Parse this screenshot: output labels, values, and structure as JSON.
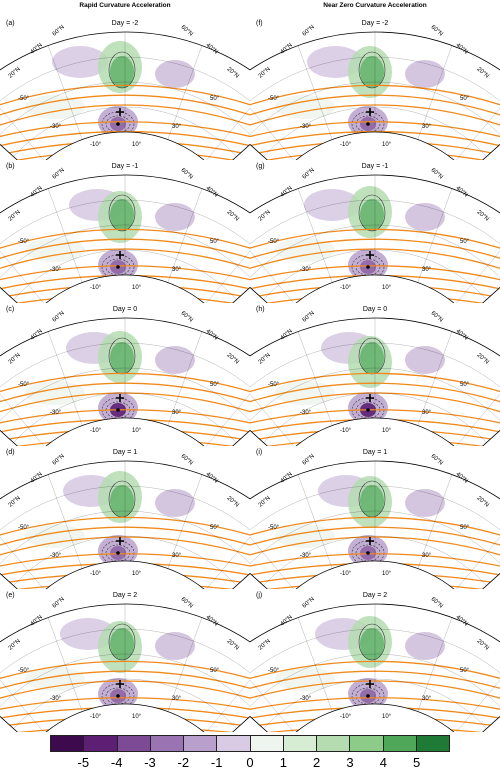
{
  "columns": [
    {
      "title": "Rapid Curvature Acceleration"
    },
    {
      "title": "Near Zero Curvature Acceleration"
    }
  ],
  "panels": [
    {
      "label": "(a)",
      "day": "Day = -2"
    },
    {
      "label": "(b)",
      "day": "Day = -1"
    },
    {
      "label": "(c)",
      "day": "Day = 0"
    },
    {
      "label": "(d)",
      "day": "Day = 1"
    },
    {
      "label": "(e)",
      "day": "Day = 2"
    },
    {
      "label": "(f)",
      "day": "Day = -2"
    },
    {
      "label": "(g)",
      "day": "Day = -1"
    },
    {
      "label": "(h)",
      "day": "Day = 0"
    },
    {
      "label": "(i)",
      "day": "Day = 1"
    },
    {
      "label": "(j)",
      "day": "Day = 2"
    }
  ],
  "map_labels": {
    "lat_left": [
      "60°N",
      "40°N",
      "20°N"
    ],
    "lat_right": [
      "60°N",
      "40°N",
      "20°N"
    ],
    "lon": [
      "-50°",
      "-30°",
      "-10°",
      "10°",
      "30°",
      "50°"
    ]
  },
  "colorbar": {
    "ticks": [
      "-5",
      "-4",
      "-3",
      "-2",
      "-1",
      "0",
      "1",
      "2",
      "3",
      "4",
      "5"
    ],
    "colors": [
      "#3d0a4e",
      "#5c1f73",
      "#7d4b96",
      "#9a73b2",
      "#b9a0cc",
      "#d8cbe3",
      "#eef4ee",
      "#d6ecd3",
      "#b4dcb0",
      "#8ccb88",
      "#4fa85a",
      "#1e7a34"
    ]
  },
  "contour_color": "#f08a1c"
}
